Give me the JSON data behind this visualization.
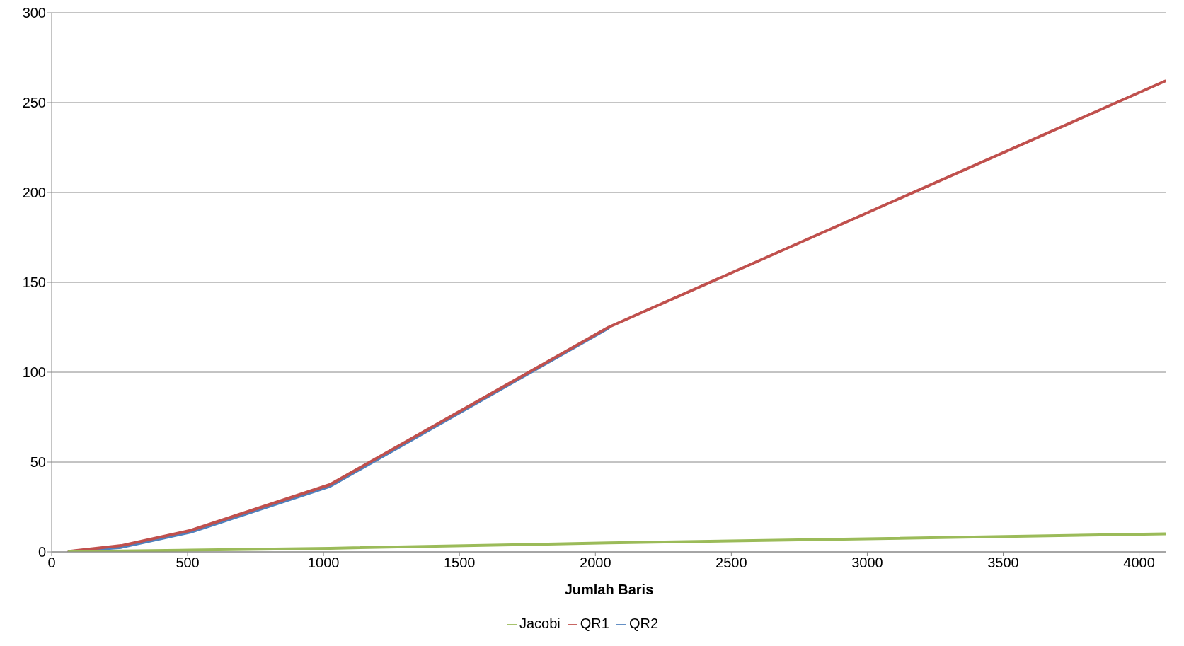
{
  "chart_data": {
    "type": "line",
    "xlabel": "Jumlah Baris",
    "x": [
      64,
      256,
      512,
      1024,
      2048,
      4096
    ],
    "series": [
      {
        "name": "QR2",
        "color": "#4f81bd",
        "values": [
          0.2,
          2.5,
          11,
          36.5,
          124.5,
          null
        ]
      },
      {
        "name": "QR1",
        "color": "#c0504d",
        "values": [
          0.3,
          3.5,
          12,
          37.5,
          125,
          262
        ]
      },
      {
        "name": "Jacobi",
        "color": "#9bbb59",
        "values": [
          0.1,
          0.5,
          1,
          2,
          5,
          10
        ]
      }
    ],
    "xlim": [
      0,
      4100
    ],
    "xticks": [
      0,
      500,
      1000,
      1500,
      2000,
      2500,
      3000,
      3500,
      4000
    ],
    "ylim": [
      0,
      300
    ],
    "yticks": [
      0,
      50,
      100,
      150,
      200,
      250,
      300
    ],
    "grid": "y",
    "legend": "bottom",
    "marker": "none",
    "line_style": "solid"
  }
}
